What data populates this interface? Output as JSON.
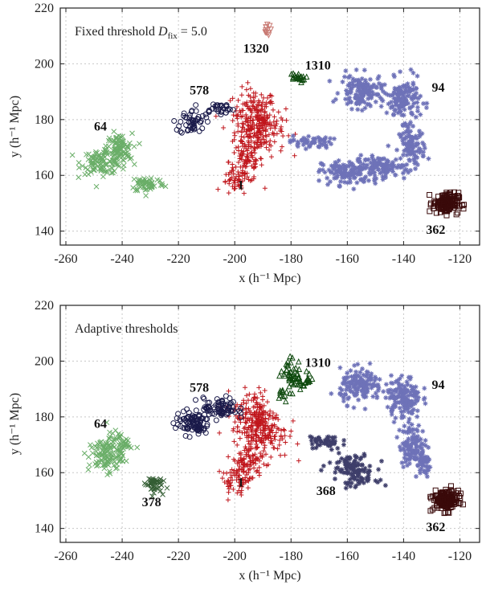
{
  "chart_data": [
    {
      "type": "scatter",
      "title": "Fixed threshold D_fix = 5.0",
      "title_main": "Fixed threshold ",
      "title_symbol": "D",
      "title_sub": "fix",
      "title_value": " = 5.0",
      "xlabel": "x (h⁻¹ Mpc)",
      "ylabel": "y (h⁻¹ Mpc)",
      "xlim": [
        -262,
        -113
      ],
      "ylim": [
        135,
        220
      ],
      "xticks": [
        -260,
        -240,
        -220,
        -200,
        -180,
        -160,
        -140,
        -120
      ],
      "yticks": [
        140,
        160,
        180,
        200,
        220
      ],
      "grid": true,
      "groups": [
        {
          "label": "1",
          "color": "#c0161c",
          "marker": "plus",
          "label_at": [
            -199,
            155
          ],
          "n": 420,
          "blobs": [
            [
              -193,
              182,
              5,
              6
            ],
            [
              -191,
              176,
              6,
              6
            ],
            [
              -196,
              165,
              4,
              5
            ],
            [
              -200,
              157,
              3,
              3
            ]
          ]
        },
        {
          "label": "64",
          "color": "#6aae68",
          "marker": "x",
          "label_at": [
            -250,
            176
          ],
          "n": 250,
          "blobs": [
            [
              -247,
              165,
              5,
              3
            ],
            [
              -241,
              169,
              3,
              4
            ],
            [
              -231,
              157,
              4,
              2
            ]
          ]
        },
        {
          "label": "578",
          "color": "#1a1a4a",
          "marker": "circle",
          "label_at": [
            -216,
            189
          ],
          "n": 80,
          "blobs": [
            [
              -215,
              179,
              3,
              3
            ],
            [
              -206,
              184,
              4,
              1.5
            ]
          ]
        },
        {
          "label": "1320",
          "color": "#c97b74",
          "marker": "tri-down",
          "label_at": [
            -197,
            204
          ],
          "n": 12,
          "blobs": [
            [
              -189,
              212,
              1.2,
              1.2
            ]
          ]
        },
        {
          "label": "1310",
          "color": "#0f4a0f",
          "marker": "tri-up",
          "label_at": [
            -175,
            198
          ],
          "n": 22,
          "blobs": [
            [
              -178,
              195,
              2,
              1.2
            ]
          ]
        },
        {
          "label": "94",
          "color": "#6e72b8",
          "marker": "asterisk",
          "label_at": [
            -130,
            190
          ],
          "n": 650,
          "blobs": [
            [
              -173,
              172,
              5,
              1.5
            ],
            [
              -160,
              161,
              6,
              3
            ],
            [
              -148,
              163,
              6,
              2.5
            ],
            [
              -137,
              170,
              3,
              5
            ],
            [
              -140,
              187,
              4,
              5
            ],
            [
              -155,
              190,
              5,
              4
            ]
          ]
        },
        {
          "label": "362",
          "color": "#3a0a0a",
          "marker": "square",
          "label_at": [
            -132,
            139
          ],
          "n": 150,
          "blobs": [
            [
              -125,
              150,
              3,
              2.5
            ]
          ]
        }
      ]
    },
    {
      "type": "scatter",
      "title": "Adaptive thresholds",
      "xlabel": "x (h⁻¹ Mpc)",
      "ylabel": "y (h⁻¹ Mpc)",
      "xlim": [
        -262,
        -113
      ],
      "ylim": [
        135,
        220
      ],
      "xticks": [
        -260,
        -240,
        -220,
        -200,
        -180,
        -160,
        -140,
        -120
      ],
      "yticks": [
        140,
        160,
        180,
        200,
        220
      ],
      "grid": true,
      "groups": [
        {
          "label": "1",
          "color": "#c0161c",
          "marker": "plus",
          "label_at": [
            -199,
            155
          ],
          "n": 430,
          "blobs": [
            [
              -193,
              181,
              5,
              6
            ],
            [
              -190,
              174,
              6,
              6
            ],
            [
              -196,
              163,
              4,
              5
            ],
            [
              -200,
              157,
              3,
              3
            ]
          ]
        },
        {
          "label": "64",
          "color": "#6aae68",
          "marker": "x",
          "label_at": [
            -250,
            176
          ],
          "n": 150,
          "blobs": [
            [
              -246,
              166,
              4,
              4
            ],
            [
              -241,
              170,
              3,
              3
            ]
          ]
        },
        {
          "label": "378",
          "color": "#345e34",
          "marker": "x",
          "label_at": [
            -233,
            148
          ],
          "n": 45,
          "blobs": [
            [
              -229,
              156,
              2,
              2
            ]
          ]
        },
        {
          "label": "578",
          "color": "#1a1a4a",
          "marker": "circle",
          "label_at": [
            -216,
            189
          ],
          "n": 170,
          "blobs": [
            [
              -215,
              178,
              4,
              3
            ],
            [
              -205,
              183,
              4,
              2.5
            ]
          ]
        },
        {
          "label": "1310",
          "color": "#0f4a0f",
          "marker": "tri-up",
          "label_at": [
            -175,
            198
          ],
          "n": 75,
          "blobs": [
            [
              -180,
              196,
              2.5,
              3.5
            ],
            [
              -176,
              193,
              3,
              2
            ],
            [
              -182,
              189,
              2,
              1.5
            ]
          ]
        },
        {
          "label": "94",
          "color": "#6e72b8",
          "marker": "asterisk",
          "label_at": [
            -130,
            190
          ],
          "n": 450,
          "blobs": [
            [
              -137,
              170,
              3,
              5
            ],
            [
              -140,
              187,
              4,
              5
            ],
            [
              -155,
              191,
              5,
              4
            ],
            [
              -133,
              163,
              2,
              3
            ]
          ]
        },
        {
          "label": "368",
          "color": "#3e3e6a",
          "marker": "asterisk",
          "label_at": [
            -171,
            152
          ],
          "n": 170,
          "blobs": [
            [
              -168,
              171,
              4,
              2
            ],
            [
              -159,
              163,
              5,
              2.5
            ],
            [
              -156,
              158,
              4,
              2
            ]
          ]
        },
        {
          "label": "362",
          "color": "#3a0a0a",
          "marker": "square",
          "label_at": [
            -132,
            139
          ],
          "n": 150,
          "blobs": [
            [
              -125,
              150,
              3,
              2.5
            ]
          ]
        }
      ]
    }
  ]
}
